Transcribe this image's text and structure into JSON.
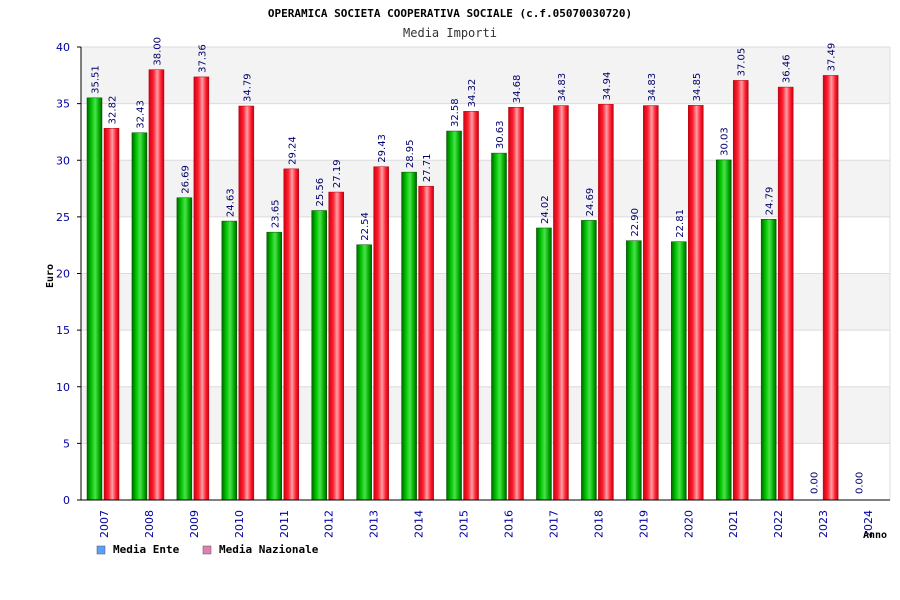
{
  "chart_data": {
    "type": "bar",
    "title": "OPERAMICA SOCIETA COOPERATIVA SOCIALE (c.f.05070030720)",
    "subtitle": "Media Importi",
    "xlabel": "Anno",
    "ylabel": "Euro",
    "ylim": [
      0,
      40
    ],
    "yticks": [
      0,
      5,
      10,
      15,
      20,
      25,
      30,
      35,
      40
    ],
    "categories": [
      "2007",
      "2008",
      "2009",
      "2010",
      "2011",
      "2012",
      "2013",
      "2014",
      "2015",
      "2016",
      "2017",
      "2018",
      "2019",
      "2020",
      "2021",
      "2022",
      "2023",
      "2024"
    ],
    "series": [
      {
        "name": "Media Ente",
        "color": "#00b000",
        "values": [
          35.51,
          32.43,
          26.69,
          24.63,
          23.65,
          25.56,
          22.54,
          28.95,
          32.58,
          30.63,
          24.02,
          24.69,
          22.9,
          22.81,
          30.03,
          24.79,
          0,
          0
        ],
        "labels": [
          "35.51",
          "32.43",
          "26.69",
          "24.63",
          "23.65",
          "25.56",
          "22.54",
          "28.95",
          "32.58",
          "30.63",
          "24.02",
          "24.69",
          "22.90",
          "22.81",
          "30.03",
          "24.79",
          "0.00",
          "0.00"
        ]
      },
      {
        "name": "Media Nazionale",
        "color": "#e8101c",
        "values": [
          32.82,
          38.0,
          37.36,
          34.79,
          29.24,
          27.19,
          29.43,
          27.71,
          34.32,
          34.68,
          34.83,
          34.94,
          34.83,
          34.85,
          37.05,
          36.46,
          37.49,
          null
        ],
        "labels": [
          "32.82",
          "38.00",
          "37.36",
          "34.79",
          "29.24",
          "27.19",
          "29.43",
          "27.71",
          "34.32",
          "34.68",
          "34.83",
          "34.94",
          "34.83",
          "34.85",
          "37.05",
          "36.46",
          "37.49",
          ""
        ]
      }
    ],
    "legend": [
      {
        "name": "Media Ente",
        "color": "#5aa0ff"
      },
      {
        "name": "Media Nazionale",
        "color": "#e080b0"
      }
    ],
    "legend_position": "bottom-left"
  }
}
